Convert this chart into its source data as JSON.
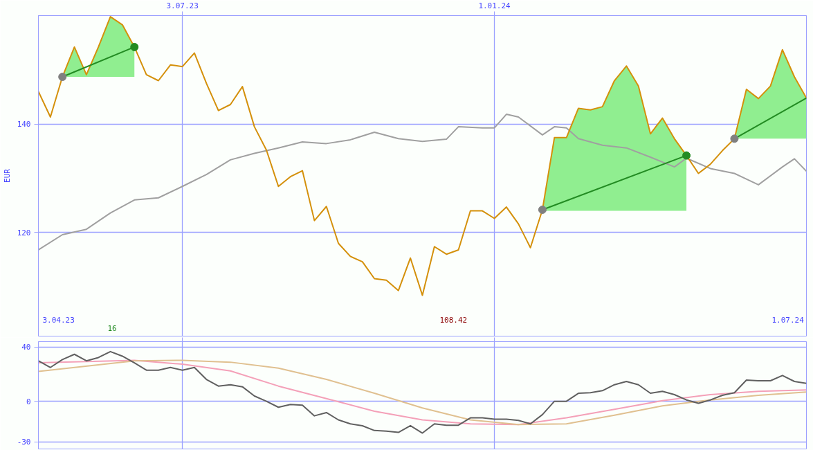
{
  "chart_data": [
    {
      "type": "line",
      "ylabel": "EUR",
      "annotations": [
        "16",
        "3.04.23",
        "108.42",
        "1.07.24"
      ],
      "x": [
        "2023-04-10",
        "2023-04-17",
        "2023-04-24",
        "2023-05-01",
        "2023-05-08",
        "2023-05-15",
        "2023-05-22",
        "2023-05-29",
        "2023-06-05",
        "2023-06-12",
        "2023-06-19",
        "2023-06-26",
        "2023-07-03",
        "2023-07-10",
        "2023-07-17",
        "2023-07-24",
        "2023-07-31",
        "2023-08-07",
        "2023-08-14",
        "2023-08-21",
        "2023-08-28",
        "2023-09-04",
        "2023-09-11",
        "2023-09-18",
        "2023-09-25",
        "2023-10-02",
        "2023-10-09",
        "2023-10-16",
        "2023-10-23",
        "2023-10-30",
        "2023-11-06",
        "2023-11-13",
        "2023-11-20",
        "2023-11-27",
        "2023-12-04",
        "2023-12-11",
        "2023-12-18",
        "2023-12-25",
        "2024-01-01",
        "2024-01-08",
        "2024-01-15",
        "2024-01-22",
        "2024-01-29",
        "2024-02-05",
        "2024-02-12",
        "2024-02-19",
        "2024-02-26",
        "2024-03-04",
        "2024-03-11",
        "2024-03-18",
        "2024-03-25",
        "2024-04-01",
        "2024-04-08",
        "2024-04-15",
        "2024-04-22",
        "2024-04-29",
        "2024-05-06",
        "2024-05-13",
        "2024-05-20",
        "2024-05-27",
        "2024-06-03",
        "2024-06-10",
        "2024-06-17",
        "2024-06-24",
        "2024-07-01"
      ],
      "xlim": [
        "2023-04-10",
        "2024-07-01"
      ],
      "xticks": [
        {
          "value": "2023-07-03",
          "label": "3.07.23"
        },
        {
          "value": "2024-01-01",
          "label": "1.01.24"
        }
      ],
      "ylim": [
        100.9,
        160.0
      ],
      "yticks": [
        120,
        140
      ],
      "grid": true,
      "series": [
        {
          "type": "line",
          "color": "#a0a0a0",
          "x": [
            "2023-04-10",
            "2023-04-24",
            "2023-05-08",
            "2023-05-22",
            "2023-06-05",
            "2023-06-19",
            "2023-07-03",
            "2023-07-17",
            "2023-07-31",
            "2023-08-14",
            "2023-08-28",
            "2023-09-11",
            "2023-09-25",
            "2023-10-09",
            "2023-10-23",
            "2023-11-06",
            "2023-11-20",
            "2023-12-04",
            "2023-12-11",
            "2023-12-25",
            "2024-01-01",
            "2024-01-08",
            "2024-01-15",
            "2024-01-29",
            "2024-02-05",
            "2024-02-12",
            "2024-02-19",
            "2024-03-04",
            "2024-03-18",
            "2024-04-01",
            "2024-04-15",
            "2024-04-22",
            "2024-05-06",
            "2024-05-20",
            "2024-06-03",
            "2024-06-17",
            "2024-06-24",
            "2024-07-01"
          ],
          "values": [
            116.8,
            119.6,
            120.6,
            123.6,
            126.0,
            126.4,
            128.5,
            130.7,
            133.4,
            134.6,
            135.6,
            136.7,
            136.4,
            137.1,
            138.5,
            137.3,
            136.8,
            137.2,
            139.5,
            139.3,
            139.3,
            141.8,
            141.3,
            138.0,
            139.5,
            139.3,
            137.3,
            136.1,
            135.6,
            133.9,
            132.1,
            133.7,
            131.8,
            130.9,
            128.8,
            132.1,
            133.6,
            131.3
          ]
        },
        {
          "type": "line",
          "color": "#90ee90",
          "x": [
            "2023-04-24",
            "2023-05-01",
            "2023-05-08",
            "2023-05-15",
            "2023-05-22",
            "2023-05-29",
            "2023-06-05"
          ],
          "values": [
            null,
            null,
            null,
            null,
            null,
            null,
            null
          ],
          "lower": [
            148.7,
            148.7,
            148.7,
            148.7,
            148.7,
            148.7,
            148.7
          ],
          "upper": [
            148.7,
            154.2,
            149.1,
            154.2,
            159.8,
            158.3,
            154.2
          ]
        },
        {
          "type": "line",
          "color": "#90ee90",
          "x": [
            "2024-01-29",
            "2024-02-05",
            "2024-02-12",
            "2024-02-19",
            "2024-02-26",
            "2024-03-04",
            "2024-03-11",
            "2024-03-18",
            "2024-03-25",
            "2024-04-01",
            "2024-04-08",
            "2024-04-15",
            "2024-04-22"
          ],
          "values": [
            null,
            null,
            null,
            null,
            null,
            null,
            null,
            null,
            null,
            null,
            null,
            null,
            null
          ],
          "lower": [
            124.0,
            124.0,
            124.0,
            124.0,
            124.0,
            124.0,
            124.0,
            124.0,
            124.0,
            124.0,
            124.0,
            124.0,
            124.0
          ],
          "upper": [
            124.2,
            137.5,
            137.5,
            142.9,
            142.6,
            143.2,
            148.0,
            150.7,
            147.0,
            138.2,
            141.1,
            137.3,
            134.2
          ]
        },
        {
          "type": "line",
          "color": "#90ee90",
          "x": [
            "2024-05-20",
            "2024-05-27",
            "2024-06-03",
            "2024-06-10",
            "2024-06-17",
            "2024-06-24",
            "2024-07-01"
          ],
          "values": [
            null,
            null,
            null,
            null,
            null,
            null,
            null
          ],
          "lower": [
            137.3,
            137.3,
            137.3,
            137.3,
            137.3,
            137.3,
            137.3
          ],
          "upper": [
            137.3,
            146.4,
            144.7,
            147.0,
            153.7,
            148.7,
            144.8
          ]
        },
        {
          "type": "line",
          "color": "#d4900a",
          "values": [
            146.0,
            141.3,
            148.7,
            154.2,
            149.1,
            154.2,
            159.8,
            158.3,
            154.2,
            149.1,
            148.0,
            150.9,
            150.6,
            153.1,
            147.5,
            142.5,
            143.6,
            146.9,
            139.5,
            135.2,
            128.5,
            130.3,
            131.4,
            122.2,
            124.8,
            118.0,
            115.6,
            114.6,
            111.5,
            111.2,
            109.3,
            115.3,
            108.42,
            117.4,
            116.0,
            116.8,
            124.0,
            124.0,
            122.6,
            124.7,
            121.6,
            117.2,
            124.2,
            137.5,
            137.5,
            142.9,
            142.6,
            143.2,
            148.0,
            150.7,
            147.0,
            138.2,
            141.1,
            137.3,
            134.2,
            130.9,
            132.6,
            135.1,
            137.3,
            146.4,
            144.7,
            147.0,
            153.7,
            148.7,
            144.8
          ]
        },
        {
          "type": "line",
          "color": "#228b22",
          "x": [
            "2023-04-24",
            "2023-06-05"
          ],
          "values": [
            148.7,
            154.2
          ]
        },
        {
          "type": "line",
          "color": "#228b22",
          "x": [
            "2024-01-29",
            "2024-04-22"
          ],
          "values": [
            124.2,
            134.2
          ]
        },
        {
          "type": "line",
          "color": "#228b22",
          "x": [
            "2024-05-20",
            "2024-07-01"
          ],
          "values": [
            137.3,
            144.8
          ]
        },
        {
          "type": "scatter",
          "color": "#808080",
          "x": [
            "2023-04-24",
            "2024-01-29",
            "2024-05-20"
          ],
          "values": [
            148.7,
            124.2,
            137.3
          ]
        },
        {
          "type": "scatter",
          "color": "#228b22",
          "x": [
            "2023-06-05",
            "2024-04-22"
          ],
          "values": [
            154.2,
            134.2
          ]
        }
      ]
    },
    {
      "type": "line",
      "tick_labels": "y",
      "xlim": [
        "2023-04-10",
        "2024-07-01"
      ],
      "xticks": [
        {
          "value": "2023-07-03",
          "label": null
        },
        {
          "value": "2024-01-01",
          "label": null
        }
      ],
      "ylim": [
        -35.1,
        43.9
      ],
      "yticks": [
        -30,
        0,
        40
      ],
      "grid": true,
      "x": [
        "2023-04-10",
        "2023-04-17",
        "2023-04-24",
        "2023-05-01",
        "2023-05-08",
        "2023-05-15",
        "2023-05-22",
        "2023-05-29",
        "2023-06-05",
        "2023-06-12",
        "2023-06-19",
        "2023-06-26",
        "2023-07-03",
        "2023-07-10",
        "2023-07-17",
        "2023-07-24",
        "2023-07-31",
        "2023-08-07",
        "2023-08-14",
        "2023-08-21",
        "2023-08-28",
        "2023-09-04",
        "2023-09-11",
        "2023-09-18",
        "2023-09-25",
        "2023-10-02",
        "2023-10-09",
        "2023-10-16",
        "2023-10-23",
        "2023-10-30",
        "2023-11-06",
        "2023-11-13",
        "2023-11-20",
        "2023-11-27",
        "2023-12-04",
        "2023-12-11",
        "2023-12-18",
        "2023-12-25",
        "2024-01-01",
        "2024-01-08",
        "2024-01-15",
        "2024-01-22",
        "2024-01-29",
        "2024-02-05",
        "2024-02-12",
        "2024-02-19",
        "2024-02-26",
        "2024-03-04",
        "2024-03-11",
        "2024-03-18",
        "2024-03-25",
        "2024-04-01",
        "2024-04-08",
        "2024-04-15",
        "2024-04-22",
        "2024-04-29",
        "2024-05-06",
        "2024-05-13",
        "2024-05-20",
        "2024-05-27",
        "2024-06-03",
        "2024-06-10",
        "2024-06-17",
        "2024-06-24",
        "2024-07-01"
      ],
      "series": [
        {
          "color": "#f4a0b8",
          "x": [
            "2023-04-10",
            "2023-06-05",
            "2023-07-03",
            "2023-07-31",
            "2023-08-28",
            "2023-09-25",
            "2023-10-23",
            "2023-11-20",
            "2023-12-18",
            "2024-01-15",
            "2024-02-12",
            "2024-03-11",
            "2024-04-08",
            "2024-05-06",
            "2024-06-03",
            "2024-07-01"
          ],
          "values": [
            28.3,
            30.2,
            27.3,
            22.4,
            11.2,
            2.0,
            -7.3,
            -13.7,
            -16.6,
            -17.1,
            -12.2,
            -5.9,
            0.5,
            4.9,
            7.3,
            8.3
          ]
        },
        {
          "color": "#e0c090",
          "x": [
            "2023-04-10",
            "2023-06-05",
            "2023-07-03",
            "2023-07-31",
            "2023-08-28",
            "2023-09-25",
            "2023-10-23",
            "2023-11-20",
            "2023-12-18",
            "2024-01-15",
            "2024-02-12",
            "2024-03-11",
            "2024-04-08",
            "2024-05-06",
            "2024-06-03",
            "2024-07-01"
          ],
          "values": [
            22.0,
            29.8,
            30.2,
            28.8,
            24.4,
            16.1,
            5.9,
            -4.9,
            -13.7,
            -17.1,
            -16.6,
            -10.2,
            -3.4,
            1.0,
            4.4,
            6.8
          ]
        },
        {
          "color": "#606060",
          "values": [
            29.8,
            24.9,
            30.7,
            34.6,
            29.8,
            32.2,
            36.6,
            33.2,
            28.3,
            22.9,
            22.9,
            24.9,
            22.9,
            24.9,
            16.1,
            11.2,
            12.2,
            10.7,
            3.9,
            0,
            -4.4,
            -2.4,
            -2.9,
            -10.7,
            -8.3,
            -13.7,
            -16.6,
            -18.0,
            -21.5,
            -22.0,
            -22.9,
            -18.0,
            -23.4,
            -16.6,
            -17.6,
            -17.6,
            -12.2,
            -12.2,
            -13.2,
            -13.2,
            -14.1,
            -16.6,
            -9.8,
            0,
            0,
            5.9,
            6.3,
            7.8,
            12.2,
            14.6,
            12.2,
            5.9,
            7.3,
            4.9,
            1.0,
            -1.5,
            1.0,
            4.4,
            6.3,
            15.6,
            15.1,
            15.1,
            19.0,
            14.6,
            13.2
          ]
        }
      ]
    }
  ]
}
